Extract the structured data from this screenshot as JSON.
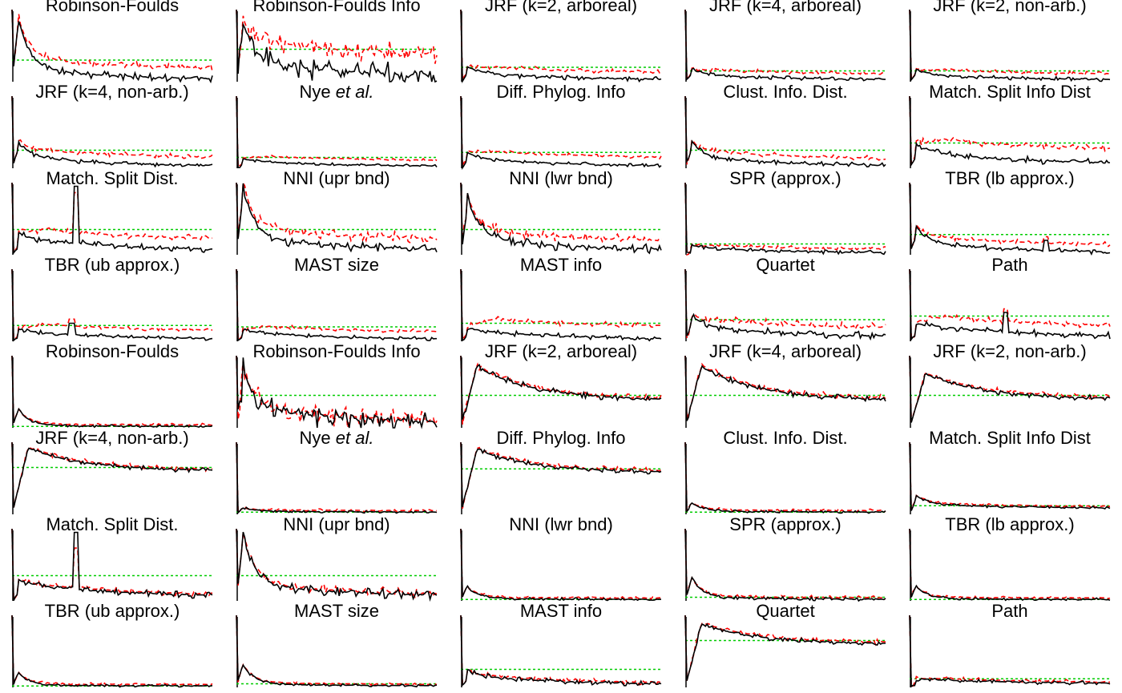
{
  "figure": {
    "panel_titles_a": [
      "Robinson-Foulds",
      "Robinson-Foulds Info",
      "JRF (k=2, arboreal)",
      "JRF (k=4, arboreal)",
      "JRF (k=2, non-arb.)",
      "JRF (k=4, non-arb.)",
      "Nye et al.",
      "Diff. Phylog. Info",
      "Clust. Info. Dist.",
      "Match. Split Info Dist",
      "Match. Split Dist.",
      "NNI (upr bnd)",
      "NNI (lwr bnd)",
      "SPR (approx.)",
      "TBR (lb approx.)",
      "TBR (ub approx.)",
      "MAST size",
      "MAST info",
      "Quartet",
      "Path"
    ],
    "panel_titles_b": [
      "Robinson-Foulds",
      "Robinson-Foulds Info",
      "JRF (k=2, arboreal)",
      "JRF (k=4, arboreal)",
      "JRF (k=2, non-arb.)",
      "JRF (k=4, non-arb.)",
      "Nye et al.",
      "Diff. Phylog. Info",
      "Clust. Info. Dist.",
      "Match. Split Info Dist",
      "Match. Split Dist.",
      "NNI (upr bnd)",
      "NNI (lwr bnd)",
      "SPR (approx.)",
      "TBR (lb approx.)",
      "TBR (ub approx.)",
      "MAST size",
      "MAST info",
      "Quartet",
      "Path"
    ]
  },
  "chart_data": {
    "type": "line",
    "layout": "8 rows x 5 columns small multiples, two blocks of 20 panels",
    "axes_visible": "y-axis line only, no ticks",
    "series": [
      {
        "style": "solid",
        "color": "#000000"
      },
      {
        "style": "dashed",
        "color": "#ff0000"
      },
      {
        "style": "dotted-horizontal-reference",
        "color": "#00cc00"
      }
    ],
    "block_a": [
      {
        "peak": 0.75,
        "end": 0.02,
        "ref": 0.3,
        "red_offset": 0.15,
        "noise": 0.06,
        "spike": null
      },
      {
        "peak": 0.6,
        "end": 0.05,
        "ref": 0.45,
        "red_offset": 0.3,
        "noise": 0.18,
        "spike": null
      },
      {
        "peak": 0.1,
        "end": 0.02,
        "ref": 0.2,
        "red_offset": 0.1,
        "noise": 0.04,
        "spike": null
      },
      {
        "peak": 0.1,
        "end": 0.02,
        "ref": 0.15,
        "red_offset": 0.08,
        "noise": 0.03,
        "spike": null
      },
      {
        "peak": 0.1,
        "end": 0.02,
        "ref": 0.15,
        "red_offset": 0.08,
        "noise": 0.03,
        "spike": null
      },
      {
        "peak": 0.25,
        "end": 0.02,
        "ref": 0.25,
        "red_offset": 0.12,
        "noise": 0.04,
        "spike": null
      },
      {
        "peak": 0.05,
        "end": 0.02,
        "ref": 0.15,
        "red_offset": 0.08,
        "noise": 0.02,
        "spike": null
      },
      {
        "peak": 0.1,
        "end": 0.02,
        "ref": 0.22,
        "red_offset": 0.12,
        "noise": 0.03,
        "spike": null
      },
      {
        "peak": 0.25,
        "end": 0.02,
        "ref": 0.25,
        "red_offset": 0.1,
        "noise": 0.04,
        "spike": null
      },
      {
        "peak": 0.15,
        "end": 0.05,
        "ref": 0.35,
        "red_offset": 0.2,
        "noise": 0.05,
        "spike": null
      },
      {
        "peak": 0.1,
        "end": 0.05,
        "ref": 0.35,
        "red_offset": 0.15,
        "noise": 0.05,
        "spike": [
          0.32,
          0.95
        ]
      },
      {
        "peak": 0.8,
        "end": 0.05,
        "ref": 0.35,
        "red_offset": 0.15,
        "noise": 0.08,
        "spike": null
      },
      {
        "peak": 0.65,
        "end": 0.05,
        "ref": 0.35,
        "red_offset": 0.12,
        "noise": 0.08,
        "spike": null
      },
      {
        "peak": 0.05,
        "end": 0.02,
        "ref": 0.15,
        "red_offset": 0.05,
        "noise": 0.03,
        "spike": null
      },
      {
        "peak": 0.25,
        "end": 0.02,
        "ref": 0.28,
        "red_offset": 0.1,
        "noise": 0.04,
        "spike": [
          0.68,
          0.2
        ]
      },
      {
        "peak": 0.05,
        "end": 0.02,
        "ref": 0.22,
        "red_offset": 0.12,
        "noise": 0.03,
        "spike": [
          0.3,
          0.25
        ]
      },
      {
        "peak": 0.05,
        "end": 0.02,
        "ref": 0.2,
        "red_offset": 0.1,
        "noise": 0.03,
        "spike": null
      },
      {
        "peak": 0.05,
        "end": 0.02,
        "ref": 0.25,
        "red_offset": 0.18,
        "noise": 0.04,
        "spike": null
      },
      {
        "peak": 0.2,
        "end": 0.05,
        "ref": 0.3,
        "red_offset": 0.12,
        "noise": 0.06,
        "spike": null
      },
      {
        "peak": 0.05,
        "end": 0.05,
        "ref": 0.35,
        "red_offset": 0.15,
        "noise": 0.05,
        "spike": [
          0.48,
          0.4
        ]
      }
    ],
    "block_b": [
      {
        "shape": "decay",
        "peak": 0.25,
        "end": 0.02,
        "ref": 0.02,
        "noise": 0.02,
        "spike": null
      },
      {
        "shape": "decay",
        "peak": 0.6,
        "end": 0.05,
        "ref": 0.45,
        "noise": 0.18,
        "spike": null
      },
      {
        "shape": "rise",
        "peak": 0.85,
        "end": 0.38,
        "ref": 0.45,
        "noise": 0.05,
        "spike": null
      },
      {
        "shape": "rise",
        "peak": 0.85,
        "end": 0.38,
        "ref": 0.45,
        "noise": 0.05,
        "spike": null
      },
      {
        "shape": "rise",
        "peak": 0.75,
        "end": 0.4,
        "ref": 0.45,
        "noise": 0.04,
        "spike": null
      },
      {
        "shape": "rise",
        "peak": 0.92,
        "end": 0.6,
        "ref": 0.65,
        "noise": 0.04,
        "spike": null
      },
      {
        "shape": "decay",
        "peak": 0.08,
        "end": 0.03,
        "ref": 0.03,
        "noise": 0.02,
        "spike": null
      },
      {
        "shape": "rise",
        "peak": 0.9,
        "end": 0.58,
        "ref": 0.63,
        "noise": 0.04,
        "spike": null
      },
      {
        "shape": "decay",
        "peak": 0.15,
        "end": 0.03,
        "ref": 0.03,
        "noise": 0.02,
        "spike": null
      },
      {
        "shape": "decay",
        "peak": 0.2,
        "end": 0.08,
        "ref": 0.12,
        "noise": 0.02,
        "spike": null
      },
      {
        "shape": "decay",
        "peak": 0.1,
        "end": 0.05,
        "ref": 0.35,
        "noise": 0.05,
        "spike": [
          0.32,
          0.95
        ]
      },
      {
        "shape": "decay",
        "peak": 0.8,
        "end": 0.05,
        "ref": 0.35,
        "noise": 0.08,
        "spike": null
      },
      {
        "shape": "decay",
        "peak": 0.2,
        "end": 0.02,
        "ref": 0.02,
        "noise": 0.02,
        "spike": null
      },
      {
        "shape": "decay",
        "peak": 0.3,
        "end": 0.02,
        "ref": 0.05,
        "noise": 0.03,
        "spike": null
      },
      {
        "shape": "decay",
        "peak": 0.2,
        "end": 0.02,
        "ref": 0.02,
        "noise": 0.02,
        "spike": null
      },
      {
        "shape": "decay",
        "peak": 0.2,
        "end": 0.02,
        "ref": 0.02,
        "noise": 0.02,
        "spike": null
      },
      {
        "shape": "decay",
        "peak": 0.3,
        "end": 0.02,
        "ref": 0.05,
        "noise": 0.02,
        "spike": null
      },
      {
        "shape": "decay",
        "peak": 0.1,
        "end": 0.03,
        "ref": 0.25,
        "noise": 0.04,
        "spike": null
      },
      {
        "shape": "rise",
        "peak": 0.88,
        "end": 0.6,
        "ref": 0.65,
        "noise": 0.04,
        "spike": null
      },
      {
        "shape": "decay",
        "peak": 0.05,
        "end": 0.05,
        "ref": 0.12,
        "noise": 0.03,
        "spike": null
      }
    ]
  }
}
